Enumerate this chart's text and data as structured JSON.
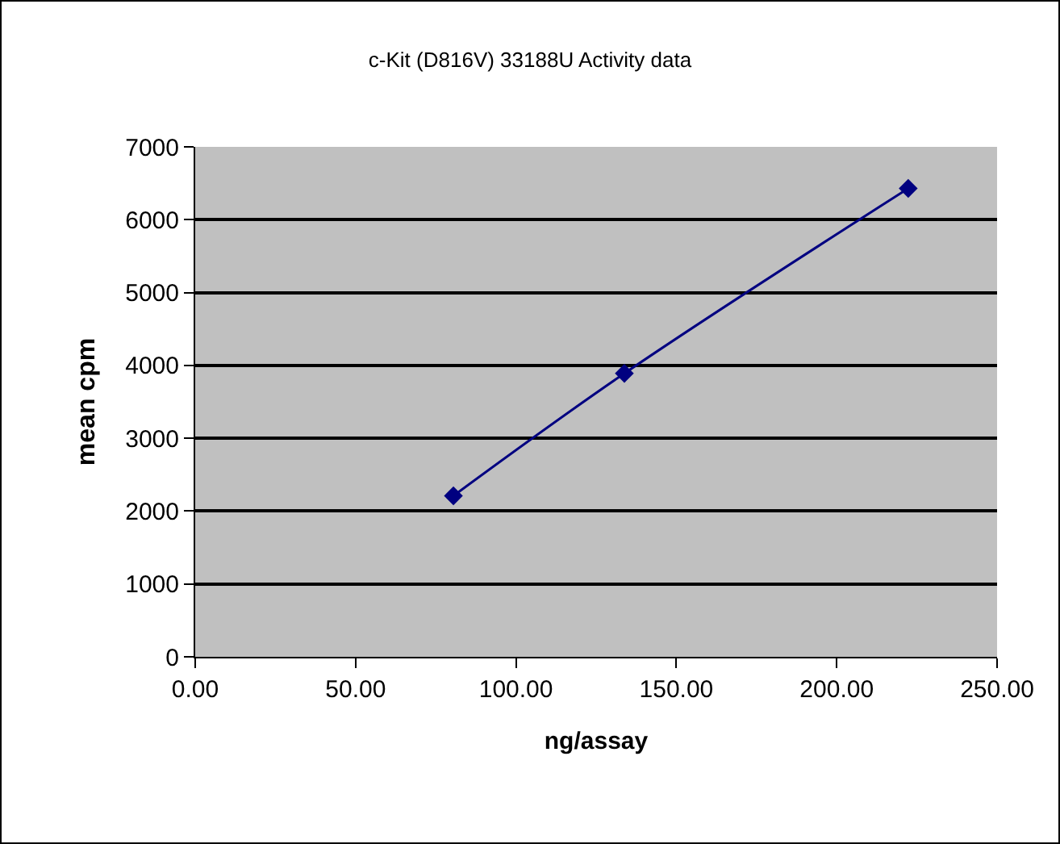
{
  "chart_data": {
    "type": "line",
    "title": "c-Kit (D816V) 33188U Activity data",
    "xlabel": "ng/assay",
    "ylabel": "mean cpm",
    "x": [
      80.5,
      133.8,
      222.3
    ],
    "series": [
      {
        "color": "#000080",
        "values": [
          2210,
          3890,
          6430
        ]
      }
    ],
    "xlim": [
      0,
      250
    ],
    "xticks": [
      {
        "value": 0,
        "label": "0.00"
      },
      {
        "value": 50,
        "label": "50.00"
      },
      {
        "value": 100,
        "label": "100.00"
      },
      {
        "value": 150,
        "label": "150.00"
      },
      {
        "value": 200,
        "label": "200.00"
      },
      {
        "value": 250,
        "label": "250.00"
      }
    ],
    "ylim": [
      0,
      7000
    ],
    "yticks": [
      0,
      1000,
      2000,
      3000,
      4000,
      5000,
      6000,
      7000
    ],
    "grid": "y",
    "legend": false,
    "marker": "diamond",
    "line_style": "solid"
  }
}
